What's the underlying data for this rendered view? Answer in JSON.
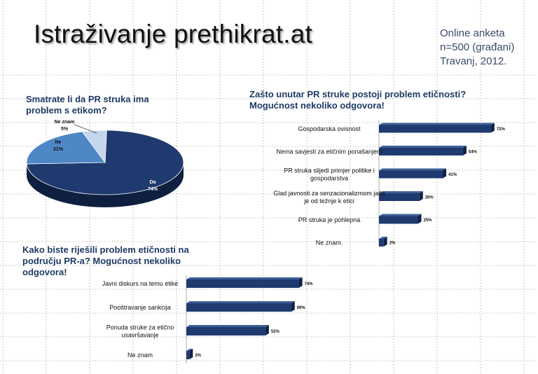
{
  "header": {
    "title": "Istraživanje prethikrat.at",
    "info_lines": [
      "Online anketa",
      "n=500 (građani)",
      "Travanj, 2012."
    ]
  },
  "colors": {
    "bar": "#1f3a6e",
    "bar_dark": "#0f2147",
    "pie_da": "#1f3a6e",
    "pie_ne": "#4f86c6",
    "pie_neznam": "#c5d6ea",
    "title_blue": "#1f3a64"
  },
  "chart_data": [
    {
      "type": "pie",
      "title_lines": [
        "Smatrate li da PR struka ima",
        "problem s etikom?"
      ],
      "slices": [
        {
          "label": "Da",
          "value": 74,
          "value_text": "74%"
        },
        {
          "label": "Ne",
          "value": 21,
          "value_text": "21%"
        },
        {
          "label": "Ne znam",
          "value": 5,
          "value_text": "5%"
        }
      ]
    },
    {
      "type": "bar",
      "orientation": "horizontal",
      "title_lines": [
        "Zašto unutar PR struke postoji problem etičnosti?",
        "Mogućnost nekoliko odgovora!"
      ],
      "categories": [
        [
          "Gospodarska ovisnost"
        ],
        [
          "Nema savjesti za etičnim ponašanjem"
        ],
        [
          "PR struka slijedi primjer politike i",
          "gospodarstva"
        ],
        [
          "Glad javnosti za senzacionalizmom jača",
          "je od težnje k etici"
        ],
        [
          "PR struka je pohlepna"
        ],
        [
          "Ne znam."
        ]
      ],
      "values": [
        72,
        54,
        41,
        26,
        25,
        3
      ],
      "value_labels": [
        "72%",
        "54%",
        "41%",
        "26%",
        "25%",
        "3%"
      ],
      "xlim": [
        0,
        75
      ]
    },
    {
      "type": "bar",
      "orientation": "horizontal",
      "title_lines": [
        "Kako biste riješili problem etičnosti na",
        "području PR-a? Mogućnost nekoliko",
        "odgovora!"
      ],
      "categories": [
        [
          "Javni diskurs na temu etike"
        ],
        [
          "Pooštravanje sankcija"
        ],
        [
          "Ponuda struke za etično",
          "usavršavanje"
        ],
        [
          "Ne znam"
        ]
      ],
      "values": [
        74,
        69,
        52,
        2
      ],
      "value_labels": [
        "74%",
        "69%",
        "52%",
        "2%"
      ],
      "xlim": [
        0,
        75
      ]
    }
  ]
}
